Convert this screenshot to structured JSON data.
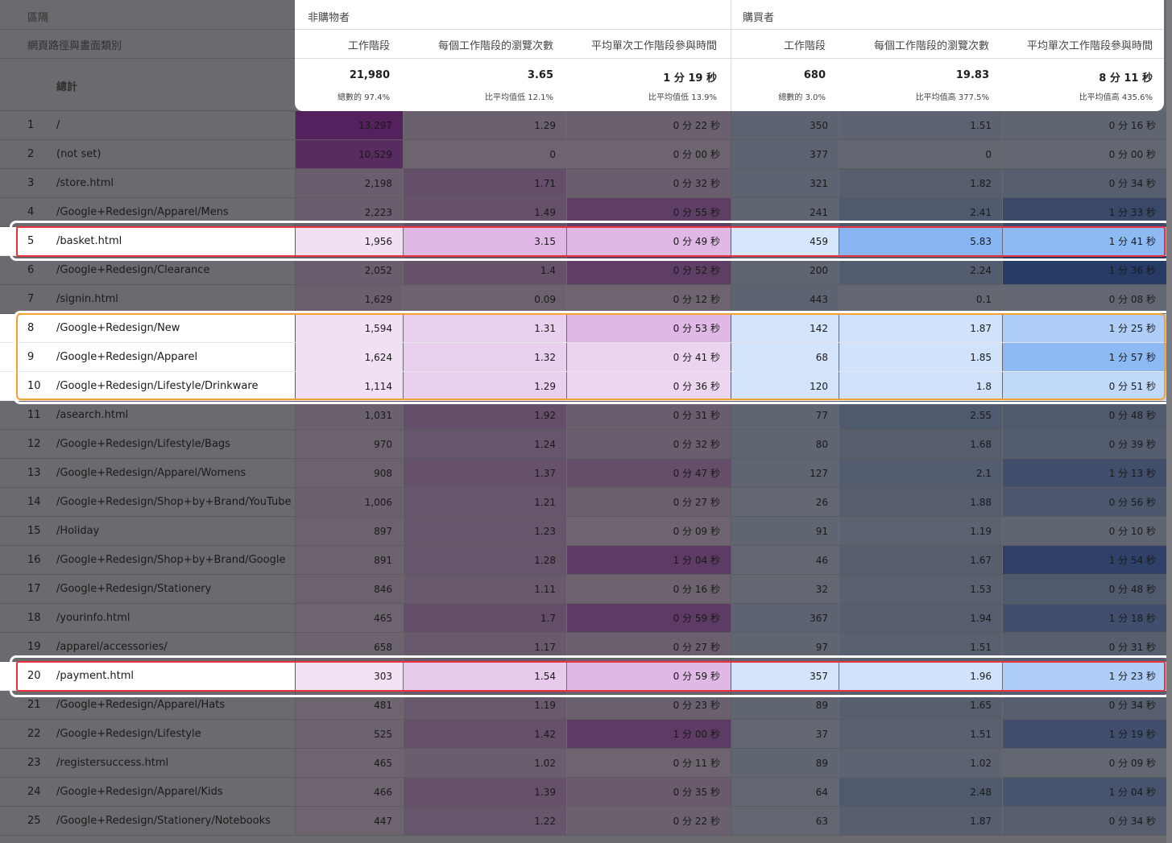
{
  "left_header": {
    "dimension_label": "區隔",
    "secondary_dimension_label": "網頁路徑與畫面類別",
    "total_label": "總計"
  },
  "groups": [
    {
      "title": "非購物者",
      "columns": [
        {
          "label": "工作階段",
          "total": "21,980",
          "sub": "總數的 97.4%"
        },
        {
          "label": "每個工作階段的瀏覽次數",
          "total": "3.65",
          "sub": "比平均值低 12.1%"
        },
        {
          "label": "平均單次工作階段參與時間",
          "total": "1 分 19 秒",
          "sub": "比平均值低 13.9%"
        }
      ]
    },
    {
      "title": "購買者",
      "columns": [
        {
          "label": "工作階段",
          "total": "680",
          "sub": "總數的 3.0%"
        },
        {
          "label": "每個工作階段的瀏覽次數",
          "total": "19.83",
          "sub": "比平均值高 377.5%"
        },
        {
          "label": "平均單次工作階段參與時間",
          "total": "8 分 11 秒",
          "sub": "比平均值高 435.6%"
        }
      ]
    }
  ],
  "colors": {
    "purple_heat": "#9c27b0",
    "blue_heat": "#1a73e8",
    "highlight_red": "#e8333f",
    "highlight_orange": "#f5a032"
  },
  "rows": [
    {
      "n": "1",
      "path": "/",
      "v": [
        "13,297",
        "1.29",
        "0 分 22 秒",
        "350",
        "1.51",
        "0 分 16 秒"
      ],
      "h": [
        0.95,
        0.1,
        0.1,
        0.12,
        0.12,
        0.1
      ]
    },
    {
      "n": "2",
      "path": "(not set)",
      "v": [
        "10,529",
        "0",
        "0 分 00 秒",
        "377",
        "0",
        "0 分 00 秒"
      ],
      "h": [
        0.8,
        0.05,
        0.05,
        0.12,
        0.05,
        0.05
      ]
    },
    {
      "n": "3",
      "path": "/store.html",
      "v": [
        "2,198",
        "1.71",
        "0 分 32 秒",
        "321",
        "1.82",
        "0 分 34 秒"
      ],
      "h": [
        0.15,
        0.35,
        0.15,
        0.12,
        0.2,
        0.22
      ]
    },
    {
      "n": "4",
      "path": "/Google+Redesign/Apparel/Mens",
      "v": [
        "2,223",
        "1.49",
        "0 分 55 秒",
        "241",
        "2.41",
        "1 分 33 秒"
      ],
      "h": [
        0.15,
        0.3,
        0.55,
        0.1,
        0.3,
        0.6
      ]
    },
    {
      "n": "5",
      "path": "/basket.html",
      "v": [
        "1,956",
        "3.15",
        "0 分 49 秒",
        "459",
        "5.83",
        "1 分 41 秒"
      ],
      "h": [
        0.12,
        0.45,
        0.45,
        0.18,
        0.8,
        0.75
      ],
      "lit": true
    },
    {
      "n": "6",
      "path": "/Google+Redesign/Clearance",
      "v": [
        "2,052",
        "1.4",
        "0 分 52 秒",
        "200",
        "2.24",
        "1 分 36 秒"
      ],
      "h": [
        0.15,
        0.3,
        0.55,
        0.1,
        0.25,
        0.85
      ]
    },
    {
      "n": "7",
      "path": "/signin.html",
      "v": [
        "1,629",
        "0.09",
        "0 分 12 秒",
        "443",
        "0.1",
        "0 分 08 秒"
      ],
      "h": [
        0.12,
        0.08,
        0.05,
        0.12,
        0.06,
        0.06
      ]
    },
    {
      "n": "8",
      "path": "/Google+Redesign/New",
      "v": [
        "1,594",
        "1.31",
        "0 分 53 秒",
        "142",
        "1.87",
        "1 分 25 秒"
      ],
      "h": [
        0.12,
        0.25,
        0.45,
        0.2,
        0.22,
        0.5
      ],
      "lit": true
    },
    {
      "n": "9",
      "path": "/Google+Redesign/Apparel",
      "v": [
        "1,624",
        "1.32",
        "0 分 41 秒",
        "68",
        "1.85",
        "1 分 57 秒"
      ],
      "h": [
        0.12,
        0.25,
        0.22,
        0.2,
        0.22,
        0.75
      ],
      "lit": true
    },
    {
      "n": "10",
      "path": "/Google+Redesign/Lifestyle/Drinkware",
      "v": [
        "1,114",
        "1.29",
        "0 分 36 秒",
        "120",
        "1.8",
        "0 分 51 秒"
      ],
      "h": [
        0.12,
        0.25,
        0.2,
        0.2,
        0.22,
        0.35
      ],
      "lit": true
    },
    {
      "n": "11",
      "path": "/asearch.html",
      "v": [
        "1,031",
        "1.92",
        "0 分 31 秒",
        "77",
        "2.55",
        "0 分 48 秒"
      ],
      "h": [
        0.1,
        0.35,
        0.15,
        0.08,
        0.3,
        0.3
      ]
    },
    {
      "n": "12",
      "path": "/Google+Redesign/Lifestyle/Bags",
      "v": [
        "970",
        "1.24",
        "0 分 32 秒",
        "80",
        "1.68",
        "0 分 39 秒"
      ],
      "h": [
        0.08,
        0.25,
        0.15,
        0.08,
        0.2,
        0.25
      ]
    },
    {
      "n": "13",
      "path": "/Google+Redesign/Apparel/Womens",
      "v": [
        "908",
        "1.37",
        "0 分 47 秒",
        "127",
        "2.1",
        "1 分 13 秒"
      ],
      "h": [
        0.08,
        0.3,
        0.35,
        0.1,
        0.25,
        0.5
      ]
    },
    {
      "n": "14",
      "path": "/Google+Redesign/Shop+by+Brand/YouTube",
      "v": [
        "1,006",
        "1.21",
        "0 分 27 秒",
        "26",
        "1.88",
        "0 分 56 秒"
      ],
      "h": [
        0.1,
        0.25,
        0.12,
        0.06,
        0.22,
        0.35
      ]
    },
    {
      "n": "15",
      "path": "/Holiday",
      "v": [
        "897",
        "1.23",
        "0 分 09 秒",
        "91",
        "1.19",
        "0 分 10 秒"
      ],
      "h": [
        0.08,
        0.25,
        0.05,
        0.08,
        0.15,
        0.08
      ]
    },
    {
      "n": "16",
      "path": "/Google+Redesign/Shop+by+Brand/Google",
      "v": [
        "891",
        "1.28",
        "1 分 04 秒",
        "46",
        "1.67",
        "1 分 54 秒"
      ],
      "h": [
        0.08,
        0.25,
        0.6,
        0.06,
        0.2,
        0.75
      ]
    },
    {
      "n": "17",
      "path": "/Google+Redesign/Stationery",
      "v": [
        "846",
        "1.11",
        "0 分 16 秒",
        "32",
        "1.53",
        "0 分 48 秒"
      ],
      "h": [
        0.08,
        0.2,
        0.08,
        0.06,
        0.18,
        0.3
      ]
    },
    {
      "n": "18",
      "path": "/yourinfo.html",
      "v": [
        "465",
        "1.7",
        "0 分 59 秒",
        "367",
        "1.94",
        "1 分 18 秒"
      ],
      "h": [
        0.05,
        0.35,
        0.6,
        0.12,
        0.22,
        0.5
      ]
    },
    {
      "n": "19",
      "path": "/apparel/accessories/",
      "v": [
        "658",
        "1.17",
        "0 分 27 秒",
        "97",
        "1.51",
        "0 分 31 秒"
      ],
      "h": [
        0.06,
        0.2,
        0.12,
        0.08,
        0.18,
        0.2
      ]
    },
    {
      "n": "20",
      "path": "/payment.html",
      "v": [
        "303",
        "1.54",
        "0 分 59 秒",
        "357",
        "1.96",
        "1 分 23 秒"
      ],
      "h": [
        0.1,
        0.3,
        0.45,
        0.2,
        0.22,
        0.5
      ],
      "lit": true
    },
    {
      "n": "21",
      "path": "/Google+Redesign/Apparel/Hats",
      "v": [
        "481",
        "1.19",
        "0 分 23 秒",
        "89",
        "1.65",
        "0 分 34 秒"
      ],
      "h": [
        0.05,
        0.2,
        0.1,
        0.08,
        0.2,
        0.22
      ]
    },
    {
      "n": "22",
      "path": "/Google+Redesign/Lifestyle",
      "v": [
        "525",
        "1.42",
        "1 分 00 秒",
        "37",
        "1.51",
        "1 分 19 秒"
      ],
      "h": [
        0.06,
        0.3,
        0.6,
        0.06,
        0.18,
        0.5
      ]
    },
    {
      "n": "23",
      "path": "/registersuccess.html",
      "v": [
        "465",
        "1.02",
        "0 分 11 秒",
        "89",
        "1.02",
        "0 分 09 秒"
      ],
      "h": [
        0.05,
        0.15,
        0.05,
        0.08,
        0.12,
        0.06
      ]
    },
    {
      "n": "24",
      "path": "/Google+Redesign/Apparel/Kids",
      "v": [
        "466",
        "1.39",
        "0 分 35 秒",
        "64",
        "2.48",
        "1 分 04 秒"
      ],
      "h": [
        0.05,
        0.3,
        0.18,
        0.07,
        0.3,
        0.4
      ]
    },
    {
      "n": "25",
      "path": "/Google+Redesign/Stationery/Notebooks",
      "v": [
        "447",
        "1.22",
        "0 分 22 秒",
        "63",
        "1.87",
        "0 分 34 秒"
      ],
      "h": [
        0.05,
        0.25,
        0.1,
        0.07,
        0.22,
        0.22
      ]
    }
  ]
}
